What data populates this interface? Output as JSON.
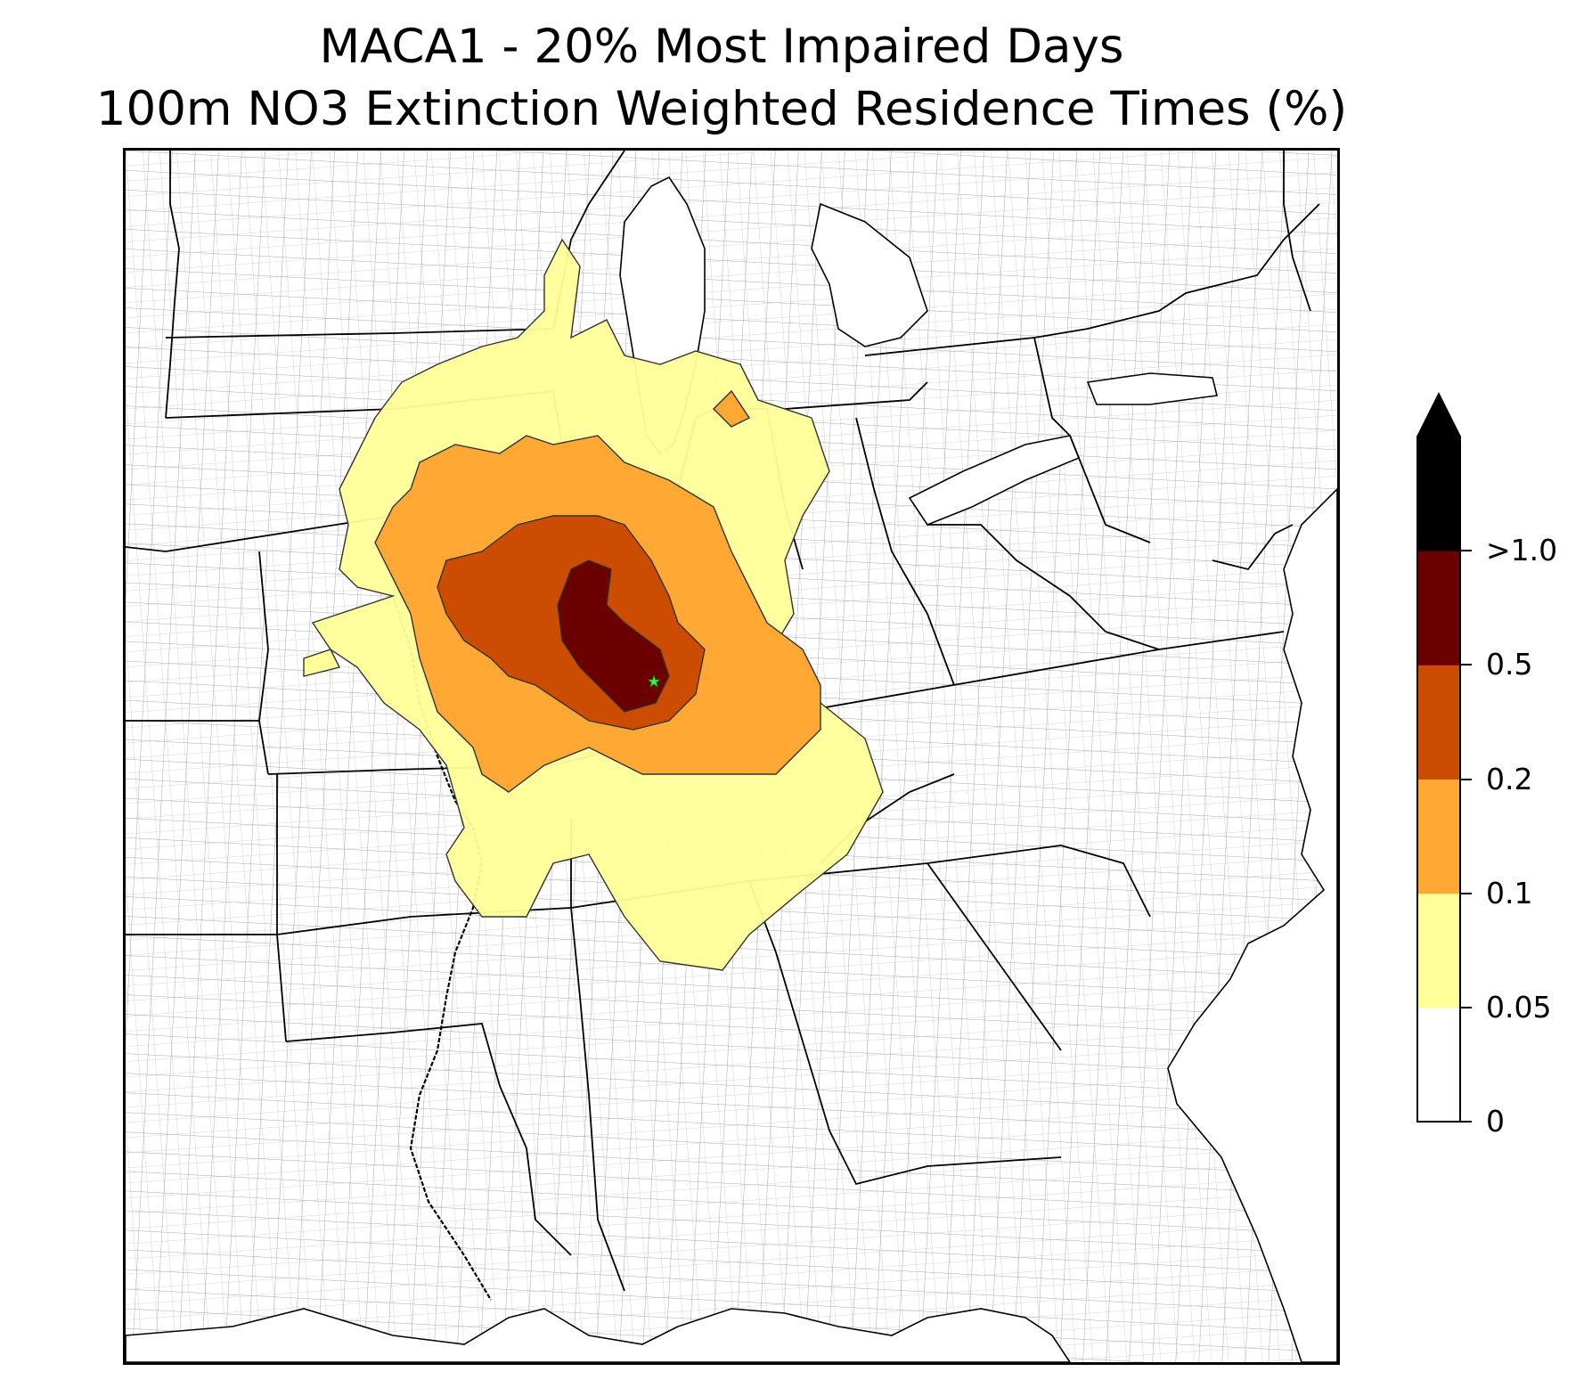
{
  "title": {
    "line1": "MACA1 - 20% Most Impaired Days",
    "line2": "100m NO3 Extinction Weighted Residence Times (%)"
  },
  "colorbar": {
    "ticks": [
      "0",
      "0.05",
      "0.1",
      "0.2",
      "0.5",
      ">1.0"
    ],
    "colors": [
      "#ffffff",
      "#ffff99",
      "#ffa833",
      "#cc4c02",
      "#6b0000",
      "#000000"
    ],
    "extend": "max"
  },
  "map": {
    "site_marker_color": "#33ff33",
    "site_marker_icon": "star-icon"
  }
}
